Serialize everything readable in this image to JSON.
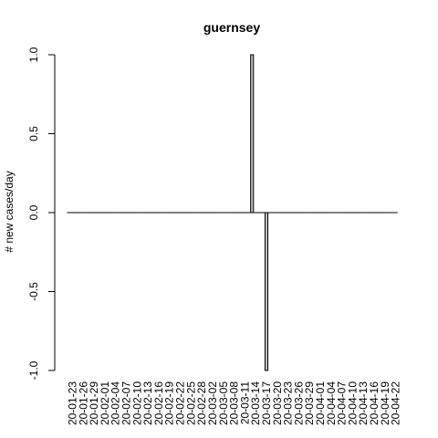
{
  "chart_data": {
    "type": "bar",
    "title": "guernsey",
    "xlabel": "",
    "ylabel": "# new cases/day",
    "ylim": [
      -1.0,
      1.0
    ],
    "yticks": [
      "-1.0",
      "-0.5",
      "0.0",
      "0.5",
      "1.0"
    ],
    "grid": false,
    "start_date": "2020-01-22",
    "num_days": 92,
    "tick_labels": [
      "20-01-23",
      "20-01-26",
      "20-01-29",
      "20-02-01",
      "20-02-04",
      "20-02-07",
      "20-02-10",
      "20-02-13",
      "20-02-16",
      "20-02-19",
      "20-02-22",
      "20-02-25",
      "20-02-28",
      "20-03-02",
      "20-03-05",
      "20-03-08",
      "20-03-11",
      "20-03-14",
      "20-03-17",
      "20-03-20",
      "20-03-23",
      "20-03-26",
      "20-03-29",
      "20-04-01",
      "20-04-04",
      "20-04-07",
      "20-04-10",
      "20-04-13",
      "20-04-16",
      "20-04-19",
      "20-04-22"
    ],
    "nonzero": [
      {
        "x": "20-03-13",
        "value": 1
      },
      {
        "x": "20-03-17",
        "value": -1
      }
    ],
    "colors": {
      "bar_fill": "#bebebe",
      "bar_stroke": "#000000"
    }
  }
}
